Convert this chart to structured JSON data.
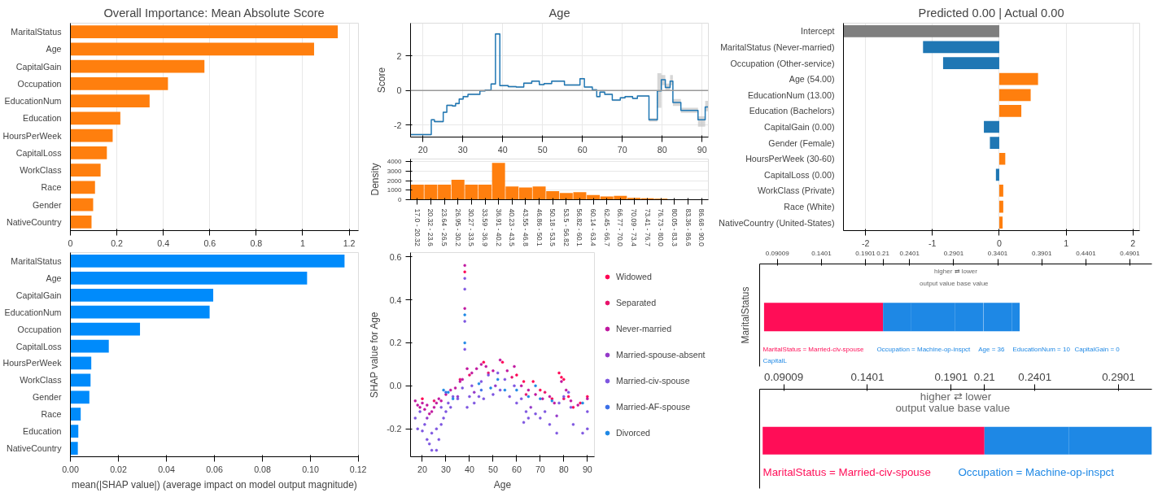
{
  "chart_data": [
    {
      "type": "bar",
      "orientation": "horizontal",
      "title": "Overall Importance: Mean Absolute Score",
      "categories": [
        "MaritalStatus",
        "Age",
        "CapitalGain",
        "Occupation",
        "EducationNum",
        "Education",
        "HoursPerWeek",
        "CapitalLoss",
        "WorkClass",
        "Race",
        "Gender",
        "NativeCountry"
      ],
      "values": [
        1.151,
        1.049,
        0.577,
        0.42,
        0.341,
        0.215,
        0.182,
        0.157,
        0.13,
        0.106,
        0.098,
        0.091
      ],
      "color": "#ff7f0e",
      "xlim": [
        0,
        1.24
      ],
      "xticks": [
        0,
        0.2,
        0.4,
        0.6,
        0.8,
        1,
        1.2
      ],
      "grid": "x"
    },
    {
      "type": "step",
      "title": "Age",
      "ylabel": "Score",
      "xlim": [
        16.9,
        91.6
      ],
      "ylim": [
        -2.7,
        3.9
      ],
      "xticks": [
        20,
        30,
        40,
        50,
        60,
        70,
        80,
        90
      ],
      "yticks": [
        -2,
        0,
        2
      ],
      "grid": true,
      "ref_lines": [
        {
          "axis": "y",
          "value": 0,
          "color": "#999999"
        }
      ],
      "series": [
        {
          "color": "#1f77b4",
          "x": [
            16.9,
            22.1,
            22.9,
            25.1,
            26.0,
            27.4,
            28.2,
            29.1,
            30.1,
            31.3,
            34.3,
            35.6,
            37.1,
            38.2,
            39.3,
            41.4,
            43.4,
            45.3,
            47.3,
            49.2,
            50.4,
            52.3,
            55.5,
            59.4,
            60.5,
            62.5,
            63.6,
            64.4,
            65.6,
            67.5,
            69.5,
            70.7,
            72.6,
            73.8,
            76.7,
            78.8,
            79.8,
            80.8,
            82.0,
            82.7,
            84.7,
            89.0,
            90.8,
            91.5
          ],
          "values": [
            -2.56,
            -1.7,
            -1.8,
            -1.26,
            -0.86,
            -0.9,
            -0.76,
            -0.5,
            -0.36,
            -0.22,
            -0.02,
            0.02,
            0.38,
            3.28,
            0.28,
            0.22,
            0.2,
            0.42,
            0.54,
            0.34,
            0.4,
            0.54,
            0.32,
            0.68,
            0.2,
            0.04,
            -0.36,
            -0.1,
            -0.22,
            -0.56,
            -0.42,
            -0.36,
            -0.46,
            -0.32,
            -1.7,
            -0.02,
            0.62,
            0.18,
            0.54,
            -0.7,
            -1.16,
            -1.7,
            -0.96,
            -0.96
          ],
          "lower": [
            -2.61,
            -1.75,
            -1.85,
            -1.31,
            -0.91,
            -0.95,
            -0.81,
            -0.55,
            -0.41,
            -0.27,
            -0.07,
            -0.03,
            0.33,
            3.23,
            0.23,
            0.17,
            0.15,
            0.37,
            0.49,
            0.29,
            0.35,
            0.49,
            0.27,
            0.63,
            0.15,
            -0.01,
            -0.41,
            -0.15,
            -0.27,
            -0.61,
            -0.47,
            -0.41,
            -0.51,
            -0.37,
            -1.8,
            -1.0,
            0.3,
            0.0,
            0.3,
            -0.9,
            -1.3,
            -2.1,
            -1.2,
            -1.2
          ],
          "upper": [
            -2.51,
            -1.65,
            -1.75,
            -1.21,
            -0.81,
            -0.85,
            -0.71,
            -0.45,
            -0.31,
            -0.17,
            0.03,
            0.07,
            0.43,
            3.33,
            0.33,
            0.27,
            0.25,
            0.47,
            0.59,
            0.39,
            0.45,
            0.59,
            0.37,
            0.73,
            0.25,
            0.09,
            -0.31,
            -0.05,
            -0.17,
            -0.51,
            -0.37,
            -0.31,
            -0.41,
            -0.27,
            -1.6,
            1.0,
            0.9,
            0.4,
            0.9,
            -0.5,
            -1.0,
            -1.5,
            -0.6,
            -0.6
          ]
        }
      ]
    },
    {
      "type": "bar",
      "ylabel": "Density",
      "categories": [
        "17.0 - 20.32",
        "20.32 - 23.6",
        "23.64 - 26.5",
        "26.95 - 30.2",
        "30.27 - 33.5",
        "33.59 - 36.9",
        "36.91 - 40.2",
        "40.23 - 43.5",
        "43.55 - 46.8",
        "46.86 - 50.1",
        "50.18 - 53.5",
        "53.5 - 56.82",
        "56.82 - 60.1",
        "60.14 - 63.4",
        "62.45 - 66.7",
        "66.77 - 70.0",
        "70.09 - 73.4",
        "73.41 - 76.7",
        "76.73 - 80.0",
        "80.05 - 83.3",
        "83.36 - 86.6",
        "86.68 - 90.0"
      ],
      "values": [
        1600,
        1600,
        1600,
        2100,
        1600,
        1600,
        3900,
        1400,
        1300,
        1400,
        900,
        700,
        800,
        500,
        350,
        400,
        200,
        150,
        100,
        50,
        30,
        30
      ],
      "color": "#ff7f0e",
      "ylim": [
        0,
        4300
      ],
      "yticks": [
        0,
        1000,
        2000,
        3000,
        4000
      ],
      "grid": "y"
    },
    {
      "type": "bar",
      "orientation": "horizontal",
      "title": "Predicted 0.00 | Actual 0.00",
      "categories": [
        "Intercept",
        "MaritalStatus (Never-married)",
        "Occupation (Other-service)",
        "Age (54.00)",
        "EducationNum (13.00)",
        "Education (Bachelors)",
        "CapitalGain (0.00)",
        "Gender (Female)",
        "HoursPerWeek (30-60)",
        "CapitalLoss (0.00)",
        "WorkClass (Private)",
        "Race (White)",
        "NativeCountry (United-States)"
      ],
      "values": [
        -2.33,
        -1.14,
        -0.84,
        0.58,
        0.47,
        0.33,
        -0.23,
        -0.14,
        0.09,
        -0.05,
        0.06,
        0.06,
        0.05
      ],
      "colors": [
        "#7f7f7f",
        "#1f77b4",
        "#1f77b4",
        "#ff7f0e",
        "#ff7f0e",
        "#ff7f0e",
        "#1f77b4",
        "#1f77b4",
        "#ff7f0e",
        "#1f77b4",
        "#ff7f0e",
        "#ff7f0e",
        "#ff7f0e"
      ],
      "xlim": [
        -2.33,
        2.1
      ],
      "xticks": [
        -2,
        -1,
        0,
        1,
        2
      ],
      "grid": "x"
    },
    {
      "type": "bar",
      "orientation": "horizontal",
      "xlabel": "mean(|SHAP value|) (average impact on model output magnitude)",
      "categories": [
        "MaritalStatus",
        "Age",
        "CapitalGain",
        "EducationNum",
        "Occupation",
        "CapitalLoss",
        "HoursPerWeek",
        "WorkClass",
        "Gender",
        "Race",
        "Education",
        "NativeCountry"
      ],
      "values": [
        0.1142,
        0.0986,
        0.0595,
        0.058,
        0.029,
        0.016,
        0.0087,
        0.0084,
        0.0079,
        0.0043,
        0.0033,
        0.0031
      ],
      "color": "#008bfb",
      "xlim": [
        0,
        0.12
      ],
      "xticks": [
        {
          "value": 0,
          "label": "0.00"
        },
        {
          "value": 0.02,
          "label": "0.02"
        },
        {
          "value": 0.04,
          "label": "0.04"
        },
        {
          "value": 0.06,
          "label": "0.06"
        },
        {
          "value": 0.08,
          "label": "0.08"
        },
        {
          "value": 0.1,
          "label": "0.10"
        },
        {
          "value": 0.12,
          "label": "0.12"
        }
      ]
    },
    {
      "type": "scatter",
      "xlabel": "Age",
      "ylabel": "SHAP value for Age",
      "marker": "circle",
      "legend": "right",
      "xlim": [
        15,
        93
      ],
      "ylim": [
        -0.33,
        0.62
      ],
      "xticks": [
        20,
        30,
        40,
        50,
        60,
        70,
        80,
        90
      ],
      "yticks": [
        -0.2,
        {
          "value": 0,
          "label": "0.0"
        },
        0.2,
        0.4,
        0.6
      ],
      "series": [
        {
          "name": "Widowed",
          "color": "#ff0052",
          "x": [
            20,
            38,
            46,
            54,
            60,
            63,
            67,
            70,
            75,
            78,
            79,
            80,
            82,
            84,
            87,
            90
          ],
          "values": [
            -0.06,
            0.53,
            0.11,
            0.11,
            0.05,
            0.02,
            0.02,
            -0.02,
            -0.06,
            0.06,
            0.04,
            0.03,
            -0.05,
            -0.1,
            -0.08,
            -0.05
          ]
        },
        {
          "name": "Separated",
          "color": "#e8116a",
          "x": [
            25,
            36,
            40,
            48,
            58,
            64,
            72,
            80
          ],
          "values": [
            -0.07,
            0.03,
            0.05,
            0.06,
            0.04,
            -0.04,
            -0.03,
            -0.06
          ]
        },
        {
          "name": "Never-married",
          "color": "#c0169f",
          "x": [
            17,
            18,
            19,
            20,
            21,
            22,
            23,
            24,
            25,
            26,
            27,
            28,
            30,
            32,
            34,
            36,
            37,
            38,
            38,
            39,
            41,
            43,
            45,
            47,
            50,
            53,
            56,
            59,
            62,
            65,
            68,
            71,
            74,
            76,
            79,
            81,
            83,
            86,
            90
          ],
          "values": [
            -0.07,
            -0.09,
            -0.1,
            -0.08,
            -0.11,
            -0.09,
            -0.13,
            -0.12,
            -0.1,
            -0.08,
            -0.06,
            -0.07,
            -0.04,
            -0.02,
            -0.01,
            0.02,
            0.03,
            0.56,
            0.36,
            0.08,
            0.06,
            0.08,
            0.1,
            0.09,
            0.07,
            0.12,
            0.07,
            0.09,
            0.0,
            -0.02,
            -0.04,
            -0.06,
            -0.05,
            -0.08,
            0.02,
            -0.02,
            -0.07,
            -0.09,
            -0.06
          ]
        },
        {
          "name": "Married-spouse-absent",
          "color": "#9438c9",
          "x": [
            22,
            35,
            42,
            51,
            66,
            77
          ],
          "values": [
            -0.15,
            -0.05,
            -0.03,
            0.0,
            -0.1,
            -0.14
          ]
        },
        {
          "name": "Married-civ-spouse",
          "color": "#7d55e0",
          "x": [
            17,
            18,
            19,
            20,
            21,
            22,
            23,
            24,
            24,
            26,
            26,
            27,
            28,
            28,
            29,
            30,
            31,
            32,
            33,
            35,
            37,
            38,
            38,
            38,
            38,
            39,
            40,
            41,
            42,
            44,
            45,
            46,
            48,
            50,
            52,
            53,
            55,
            57,
            59,
            60,
            62,
            63,
            64,
            65,
            68,
            70,
            72,
            74,
            77,
            78,
            80,
            82,
            83,
            84,
            88,
            90,
            90
          ],
          "values": [
            -0.15,
            -0.2,
            -0.12,
            -0.21,
            -0.18,
            -0.25,
            -0.27,
            -0.3,
            -0.22,
            -0.3,
            -0.2,
            -0.25,
            -0.18,
            -0.1,
            -0.15,
            -0.12,
            -0.08,
            -0.1,
            -0.05,
            -0.06,
            -0.01,
            0.17,
            0.3,
            0.45,
            0.5,
            -0.1,
            -0.05,
            0.0,
            -0.08,
            -0.05,
            0.02,
            -0.06,
            0.05,
            -0.04,
            0.06,
            -0.02,
            0.03,
            -0.05,
            0.0,
            -0.08,
            -0.06,
            -0.17,
            -0.12,
            -0.15,
            -0.13,
            -0.15,
            -0.12,
            -0.18,
            -0.22,
            -0.08,
            -0.05,
            -0.03,
            -0.1,
            -0.18,
            -0.22,
            -0.2,
            -0.12
          ]
        },
        {
          "name": "Married-AF-spouse",
          "color": "#3a6fe8",
          "x": [
            30,
            45
          ],
          "values": [
            -0.03,
            -0.02
          ]
        },
        {
          "name": "Divorced",
          "color": "#1e88e5",
          "x": [
            29,
            31,
            33,
            38,
            38,
            44,
            49,
            52,
            55,
            60,
            65,
            68,
            70,
            75,
            88
          ],
          "values": [
            -0.02,
            -0.03,
            -0.06,
            0.33,
            0.2,
            0.01,
            -0.01,
            0.03,
            -0.02,
            -0.02,
            -0.05,
            0.0,
            -0.06,
            -0.07,
            -0.08
          ]
        }
      ]
    },
    {
      "type": "bar",
      "orientation": "horizontal",
      "ylabel": "MaritalStatus",
      "categories": [
        null
      ],
      "xlim": [
        0.07,
        0.515
      ],
      "xticks": [
        0.09009,
        0.1401,
        0.1901,
        0.21,
        0.2401,
        0.2901,
        0.3401,
        0.3901,
        0.4401,
        0.4901
      ],
      "annotations": [
        "higher ⇄ lower",
        "output value   base value",
        "MaritalStatus = Married-civ-spouse",
        "Occupation = Machine-op-inspct",
        "Age = 36",
        "EducationNum = 10",
        "CapitalGain = 0",
        "CapitalL"
      ],
      "series": [
        {
          "color": "#ff0d57",
          "values": [
            0.135
          ],
          "base": [
            0.075
          ]
        },
        {
          "color": "#1e88e5",
          "values": [
            0.032
          ],
          "base": [
            0.21
          ]
        },
        {
          "color": "#1e88e5",
          "values": [
            0.05
          ],
          "base": [
            0.2418
          ]
        },
        {
          "color": "#1e88e5",
          "values": [
            0.032
          ],
          "base": [
            0.2917
          ]
        },
        {
          "color": "#1e88e5",
          "values": [
            0.032
          ],
          "base": [
            0.324
          ]
        },
        {
          "color": "#1e88e5",
          "values": [
            0.009
          ],
          "base": [
            0.356
          ]
        }
      ]
    },
    {
      "type": "bar",
      "orientation": "horizontal",
      "categories": [
        null
      ],
      "xlim": [
        0.0757,
        0.31
      ],
      "xticks": [
        0.09009,
        0.1401,
        0.1901,
        0.21,
        0.2401,
        0.2901
      ],
      "annotations": [
        "higher ⇄ lower",
        "output value   base value",
        "MaritalStatus = Married-civ-spouse",
        "Occupation = Machine-op-inspct"
      ],
      "series": [
        {
          "color": "#ff0d57",
          "values": [
            0.1325
          ],
          "base": [
            0.0775
          ]
        },
        {
          "color": "#1e88e5",
          "values": [
            0.0503
          ],
          "base": [
            0.21
          ]
        },
        {
          "color": "#1e88e5",
          "values": [
            0.0497
          ],
          "base": [
            0.2603
          ]
        }
      ]
    }
  ]
}
